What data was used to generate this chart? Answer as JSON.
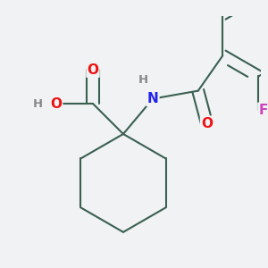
{
  "background_color": "#f0f2f4",
  "bond_color": "#3a6050",
  "bond_width": 1.5,
  "atom_colors": {
    "O": "#ee1111",
    "N": "#2222ee",
    "F": "#cc44bb",
    "H": "#888888"
  },
  "font_size": 11,
  "font_size_h": 9.5
}
